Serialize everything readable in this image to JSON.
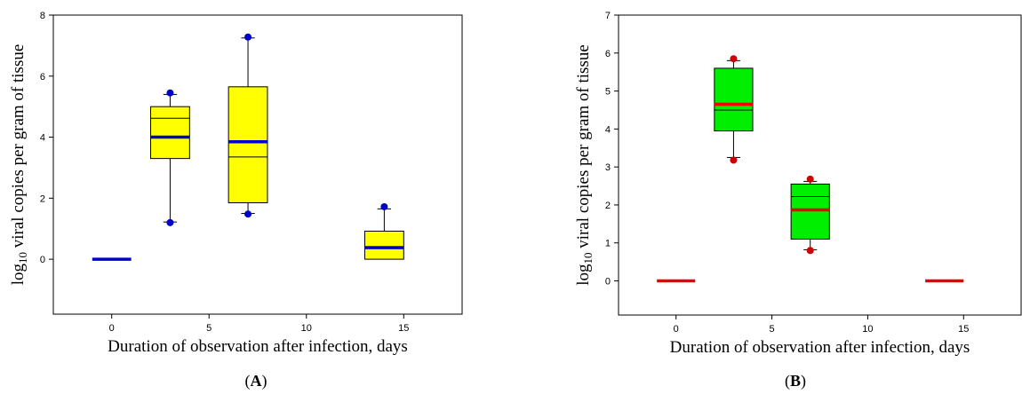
{
  "chart_data": [
    {
      "panel": "A",
      "type": "box",
      "caption": "A",
      "title": "",
      "xlabel": "Duration of observation after infection, days",
      "ylabel_sub": "log",
      "ylabel_subscript": "10",
      "ylabel_rest": " viral copies per gram of tissue",
      "xlim": [
        -3,
        18
      ],
      "ylim": [
        -1.8,
        8
      ],
      "xticks": [
        0,
        5,
        10,
        15
      ],
      "yticks": [
        0,
        2,
        4,
        6,
        8
      ],
      "box_color": "#ffff00",
      "mean_color": "#0000cc",
      "outlier_color": "#0000cc",
      "boxes": [
        {
          "x": 0,
          "q1": 0,
          "q3": 0,
          "median": 0,
          "mean": 0,
          "whisker_low": 0,
          "whisker_high": 0,
          "outliers": []
        },
        {
          "x": 3,
          "q1": 3.3,
          "q3": 5.0,
          "median": 4.62,
          "mean": 4.0,
          "whisker_low": 1.22,
          "whisker_high": 5.4,
          "outliers": [
            1.2,
            5.45
          ]
        },
        {
          "x": 7,
          "q1": 1.85,
          "q3": 5.65,
          "median": 3.35,
          "mean": 3.85,
          "whisker_low": 1.5,
          "whisker_high": 7.25,
          "outliers": [
            1.48,
            7.28
          ]
        },
        {
          "x": 14,
          "q1": 0.0,
          "q3": 0.92,
          "median": 0.35,
          "mean": 0.38,
          "whisker_low": 0.0,
          "whisker_high": 1.65,
          "outliers": [
            1.72
          ]
        }
      ]
    },
    {
      "panel": "B",
      "type": "box",
      "caption": "B",
      "title": "",
      "xlabel": "Duration of observation after infection, days",
      "ylabel_sub": "log",
      "ylabel_subscript": "10",
      "ylabel_rest": " viral copies per gram of tissue",
      "xlim": [
        -3,
        18
      ],
      "ylim": [
        -0.9,
        7
      ],
      "xticks": [
        0,
        5,
        10,
        15
      ],
      "yticks": [
        0,
        1,
        2,
        3,
        4,
        5,
        6,
        7
      ],
      "box_color": "#00ee00",
      "mean_color": "#ee0000",
      "outlier_color": "#cc0000",
      "boxes": [
        {
          "x": 0,
          "q1": 0,
          "q3": 0,
          "median": 0,
          "mean": 0,
          "whisker_low": 0,
          "whisker_high": 0,
          "outliers": []
        },
        {
          "x": 3,
          "q1": 3.95,
          "q3": 5.6,
          "median": 4.5,
          "mean": 4.65,
          "whisker_low": 3.25,
          "whisker_high": 5.8,
          "outliers": [
            3.18,
            5.85
          ]
        },
        {
          "x": 7,
          "q1": 1.1,
          "q3": 2.55,
          "median": 2.22,
          "mean": 1.87,
          "whisker_low": 0.82,
          "whisker_high": 2.62,
          "outliers": [
            0.8,
            2.68
          ]
        },
        {
          "x": 14,
          "q1": 0,
          "q3": 0,
          "median": 0,
          "mean": 0,
          "whisker_low": 0,
          "whisker_high": 0,
          "outliers": []
        }
      ]
    }
  ]
}
